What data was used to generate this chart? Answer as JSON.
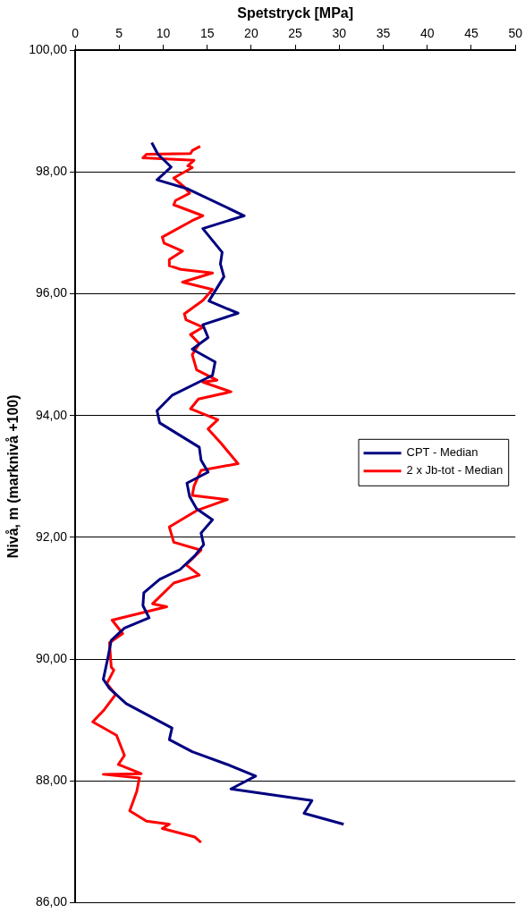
{
  "chart_data": {
    "type": "line",
    "xlabel": "Spetstryck [MPa]",
    "ylabel": "Nivå, m (marknivå +100)",
    "xlim": [
      0,
      50
    ],
    "xticks": [
      0,
      5,
      10,
      15,
      20,
      25,
      30,
      35,
      40,
      45,
      50
    ],
    "ylim": [
      86,
      100
    ],
    "yticks": [
      {
        "value": 86,
        "label": "86,00"
      },
      {
        "value": 88,
        "label": "88,00"
      },
      {
        "value": 90,
        "label": "90,00"
      },
      {
        "value": 92,
        "label": "92,00"
      },
      {
        "value": 94,
        "label": "94,00"
      },
      {
        "value": 96,
        "label": "96,00"
      },
      {
        "value": 98,
        "label": "98,00"
      },
      {
        "value": 100,
        "label": "100,00"
      }
    ],
    "grid": "y",
    "legend": "right",
    "marker": "none",
    "line_style": "solid",
    "series": [
      {
        "name": "CPT - Median",
        "color": "#000080",
        "x": [
          8.7,
          9.4,
          10.9,
          9.3,
          12.8,
          19.2,
          14.5,
          16.7,
          16.5,
          16.9,
          15.2,
          18.5,
          14.5,
          15.1,
          13.3,
          15.9,
          15.6,
          11.0,
          9.3,
          9.6,
          14.1,
          14.3,
          15.1,
          12.7,
          13.0,
          13.8,
          15.6,
          14.3,
          14.6,
          13.6,
          11.9,
          9.6,
          7.8,
          7.7,
          8.4,
          5.6,
          4.1,
          3.7,
          3.2,
          3.9,
          5.8,
          11.0,
          10.7,
          13.3,
          17.3,
          20.5,
          17.7,
          26.9,
          26.0,
          30.5
        ],
        "values": [
          98.48,
          98.29,
          98.08,
          97.87,
          97.72,
          97.28,
          97.07,
          96.68,
          96.49,
          96.28,
          95.88,
          95.68,
          95.49,
          95.28,
          95.09,
          94.88,
          94.66,
          94.33,
          94.08,
          93.88,
          93.48,
          93.27,
          93.07,
          92.89,
          92.67,
          92.47,
          92.29,
          92.07,
          91.88,
          91.7,
          91.47,
          91.31,
          91.09,
          90.88,
          90.68,
          90.51,
          90.31,
          90.01,
          89.67,
          89.52,
          89.27,
          88.87,
          88.68,
          88.48,
          88.27,
          88.08,
          87.87,
          87.68,
          87.47,
          87.29
        ]
      },
      {
        "name": "2 x Jb-tot - Median",
        "color": "#ff0000",
        "x": [
          14.2,
          13.3,
          13.1,
          8.1,
          7.7,
          13.5,
          12.8,
          13.3,
          11.2,
          12.4,
          13.0,
          11.4,
          11.2,
          14.5,
          13.3,
          9.9,
          10.1,
          12.2,
          10.7,
          10.7,
          12.0,
          15.6,
          12.2,
          15.6,
          14.5,
          12.4,
          12.6,
          14.5,
          13.1,
          14.1,
          13.3,
          13.8,
          16.1,
          14.5,
          17.7,
          14.0,
          13.1,
          16.2,
          15.1,
          16.6,
          18.5,
          14.3,
          13.5,
          13.3,
          17.3,
          13.8,
          10.7,
          11.2,
          14.3,
          12.6,
          14.1,
          11.2,
          8.8,
          10.4,
          4.2,
          5.4,
          3.9,
          4.1,
          4.4,
          3.6,
          4.6,
          3.3,
          2.0,
          4.7,
          5.6,
          4.9,
          7.5,
          3.2,
          7.3,
          7.0,
          6.2,
          8.1,
          10.7,
          9.9,
          13.6,
          14.3
        ],
        "values": [
          98.42,
          98.35,
          98.3,
          98.29,
          98.23,
          98.19,
          98.1,
          98.07,
          97.9,
          97.75,
          97.65,
          97.53,
          97.46,
          97.28,
          97.2,
          96.93,
          96.83,
          96.7,
          96.56,
          96.46,
          96.4,
          96.34,
          96.19,
          96.07,
          95.89,
          95.67,
          95.57,
          95.45,
          95.33,
          95.18,
          95.0,
          94.75,
          94.58,
          94.55,
          94.39,
          94.27,
          94.11,
          93.93,
          93.78,
          93.54,
          93.21,
          93.1,
          92.84,
          92.69,
          92.62,
          92.44,
          92.17,
          91.92,
          91.79,
          91.55,
          91.38,
          91.25,
          90.91,
          90.86,
          90.64,
          90.42,
          90.27,
          89.87,
          89.82,
          89.6,
          89.42,
          89.17,
          88.97,
          88.75,
          88.42,
          88.27,
          88.12,
          88.11,
          88.05,
          87.83,
          87.51,
          87.34,
          87.29,
          87.22,
          87.08,
          86.99
        ]
      }
    ]
  }
}
